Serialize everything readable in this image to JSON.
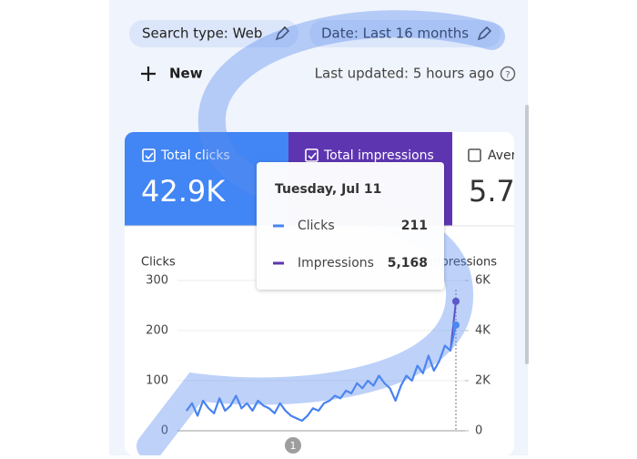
{
  "filters": [
    "Search type: Web",
    "Date: Last 16 months"
  ],
  "new_button": "New",
  "last_updated": "Last updated: 5 hours ago",
  "metrics": [
    {
      "label": "Total clicks",
      "value": "42.9K"
    },
    {
      "label": "Total impressions"
    },
    {
      "label": "Aver",
      "value": "5.7"
    }
  ],
  "tooltip": {
    "date": "Tuesday, Jul 11",
    "rows": [
      {
        "name": "Clicks",
        "value": "211"
      },
      {
        "name": "Impressions",
        "value": "5,168"
      }
    ]
  },
  "chart_data": {
    "type": "line",
    "ylabel": "Clicks",
    "y2label": "Impressions",
    "ylim": [
      0,
      300
    ],
    "yticks": [
      0,
      100,
      200,
      300
    ],
    "y2lim": [
      0,
      6000
    ],
    "y2ticks": [
      {
        "value": 0,
        "label": "0"
      },
      {
        "value": 2000,
        "label": "2K"
      },
      {
        "value": 4000,
        "label": "4K"
      },
      {
        "value": 6000,
        "label": "6K"
      }
    ],
    "series": [
      {
        "name": "Clicks",
        "color": "#4285f4",
        "values": [
          40,
          55,
          30,
          60,
          45,
          35,
          65,
          40,
          50,
          70,
          45,
          55,
          40,
          60,
          50,
          45,
          35,
          55,
          40,
          30,
          25,
          20,
          30,
          45,
          40,
          55,
          60,
          70,
          65,
          80,
          75,
          95,
          85,
          100,
          90,
          110,
          95,
          85,
          60,
          90,
          110,
          100,
          130,
          115,
          150,
          120,
          140,
          170,
          160,
          211
        ]
      },
      {
        "name": "Impressions",
        "color": "#5e35b1",
        "axis": "y2",
        "values": [
          800,
          1100,
          600,
          1200,
          900,
          700,
          1300,
          800,
          1000,
          1400,
          900,
          1100,
          800,
          1200,
          1000,
          900,
          700,
          1100,
          800,
          600,
          500,
          400,
          600,
          900,
          800,
          1100,
          1200,
          1400,
          1300,
          1600,
          1500,
          1900,
          1700,
          2000,
          1800,
          2200,
          1900,
          1700,
          1200,
          1800,
          2200,
          2000,
          2600,
          2300,
          3000,
          2400,
          2800,
          3400,
          3200,
          5168
        ]
      }
    ]
  },
  "page_indicator": "1"
}
